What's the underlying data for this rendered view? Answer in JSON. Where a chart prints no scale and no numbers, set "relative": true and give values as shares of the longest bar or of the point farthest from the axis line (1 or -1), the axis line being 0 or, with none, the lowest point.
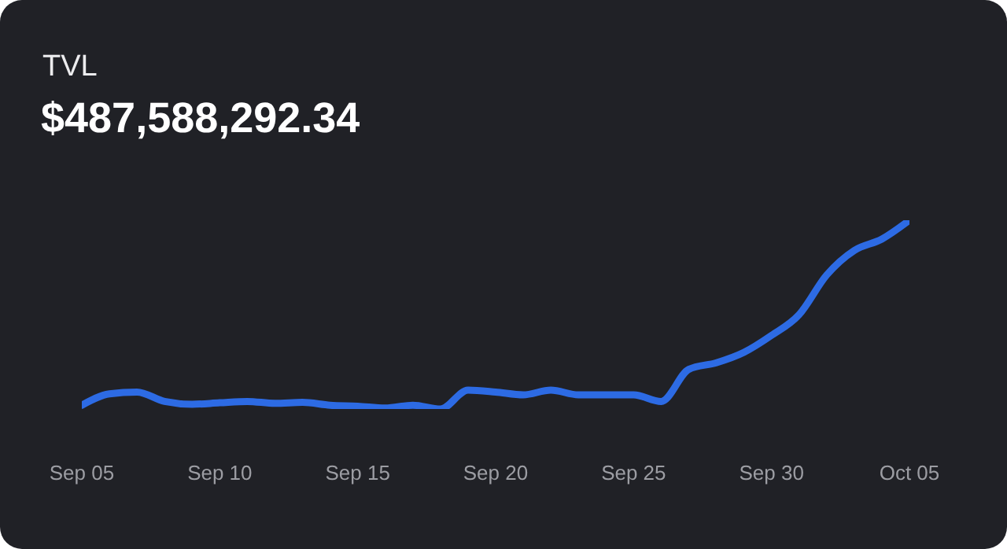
{
  "chart_data": {
    "type": "line",
    "title": "TVL",
    "subtitle": "$487,588,292.34",
    "relative": true,
    "x": [
      "--09-05",
      "--09-06",
      "--09-07",
      "--09-08",
      "--09-09",
      "--09-10",
      "--09-11",
      "--09-12",
      "--09-13",
      "--09-14",
      "--09-15",
      "--09-16",
      "--09-17",
      "--09-18",
      "--09-19",
      "--09-20",
      "--09-21",
      "--09-22",
      "--09-23",
      "--09-24",
      "--09-25",
      "--09-26",
      "--09-27",
      "--09-28",
      "--09-29",
      "--09-30",
      "--10-01",
      "--10-02",
      "--10-03",
      "--10-04",
      "--10-05"
    ],
    "series": [
      {
        "color": "#2d6be4",
        "values": [
          0.02,
          0.08,
          0.09,
          0.04,
          0.025,
          0.033,
          0.04,
          0.03,
          0.035,
          0.02,
          0.015,
          0.005,
          0.02,
          0,
          0.1,
          0.09,
          0.075,
          0.1,
          0.075,
          0.075,
          0.075,
          0.04,
          0.21,
          0.245,
          0.3,
          0.39,
          0.5,
          0.71,
          0.84,
          0.9,
          1
        ]
      }
    ],
    "xlim": [
      "--09-05",
      "--10-05"
    ],
    "xticks": [
      {
        "value": "--09-05",
        "label": "Sep 05"
      },
      {
        "value": "--09-10",
        "label": "Sep 10"
      },
      {
        "value": "--09-15",
        "label": "Sep 15"
      },
      {
        "value": "--09-20",
        "label": "Sep 20"
      },
      {
        "value": "--09-25",
        "label": "Sep 25"
      },
      {
        "value": "--09-30",
        "label": "Sep 30"
      },
      {
        "value": "--10-05",
        "label": "Oct 05"
      }
    ],
    "grid": false,
    "legend": false,
    "marker": "none",
    "line_style": "solid"
  }
}
